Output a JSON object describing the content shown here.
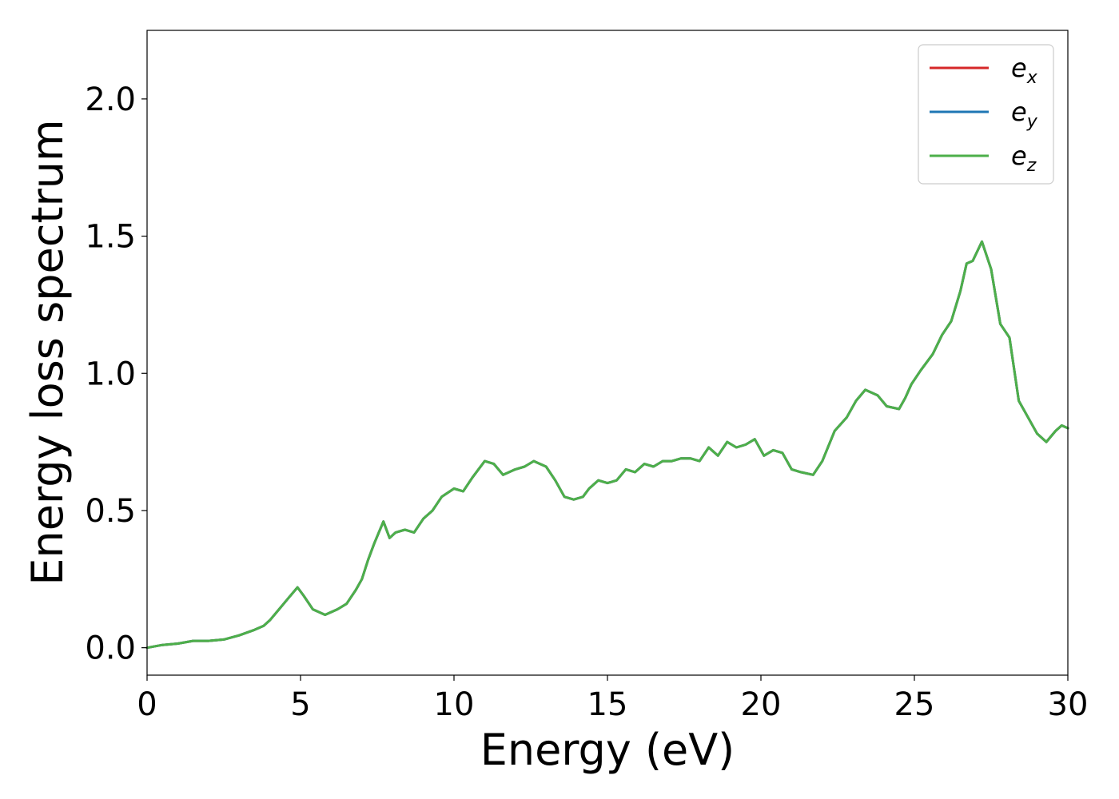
{
  "chart_data": {
    "type": "line",
    "title": "",
    "xlabel": "Energy (eV)",
    "ylabel": "Energy loss spectrum",
    "xlim": [
      0,
      30
    ],
    "ylim": [
      -0.1,
      2.25
    ],
    "xticks": [
      0,
      5,
      10,
      15,
      20,
      25,
      30
    ],
    "yticks": [
      0.0,
      0.5,
      1.0,
      1.5,
      2.0
    ],
    "xtick_labels": [
      "0",
      "5",
      "10",
      "15",
      "20",
      "25",
      "30"
    ],
    "ytick_labels": [
      "0.0",
      "0.5",
      "1.0",
      "1.5",
      "2.0"
    ],
    "grid": false,
    "legend_position": "top-right",
    "legend": [
      {
        "base": "e",
        "sub": "x",
        "color": "#d62728"
      },
      {
        "base": "e",
        "sub": "y",
        "color": "#1f77b4"
      },
      {
        "base": "e",
        "sub": "z",
        "color": "#4daf4a"
      }
    ],
    "x": [
      0.0,
      0.5,
      1.0,
      1.5,
      2.0,
      2.5,
      3.0,
      3.5,
      3.8,
      4.0,
      4.3,
      4.6,
      4.9,
      5.1,
      5.4,
      5.8,
      6.2,
      6.5,
      6.8,
      7.0,
      7.2,
      7.4,
      7.7,
      7.9,
      8.1,
      8.4,
      8.7,
      9.0,
      9.3,
      9.6,
      10.0,
      10.3,
      10.6,
      11.0,
      11.3,
      11.6,
      12.0,
      12.3,
      12.6,
      13.0,
      13.3,
      13.6,
      13.9,
      14.2,
      14.4,
      14.7,
      15.0,
      15.3,
      15.6,
      15.9,
      16.2,
      16.5,
      16.8,
      17.1,
      17.4,
      17.7,
      18.0,
      18.3,
      18.6,
      18.9,
      19.2,
      19.5,
      19.8,
      20.1,
      20.4,
      20.7,
      21.0,
      21.3,
      21.7,
      22.0,
      22.4,
      22.8,
      23.1,
      23.4,
      23.8,
      24.1,
      24.5,
      24.7,
      24.9,
      25.2,
      25.6,
      25.9,
      26.2,
      26.5,
      26.7,
      26.9,
      27.2,
      27.5,
      27.8,
      28.1,
      28.4,
      28.7,
      29.0,
      29.3,
      29.6,
      29.8,
      30.0
    ],
    "series": [
      {
        "name": "e_x",
        "values": [
          0.0,
          0.01,
          0.015,
          0.025,
          0.025,
          0.03,
          0.045,
          0.065,
          0.08,
          0.1,
          0.14,
          0.18,
          0.22,
          0.19,
          0.14,
          0.12,
          0.14,
          0.16,
          0.21,
          0.25,
          0.32,
          0.38,
          0.46,
          0.4,
          0.42,
          0.43,
          0.42,
          0.47,
          0.5,
          0.55,
          0.58,
          0.57,
          0.62,
          0.68,
          0.67,
          0.63,
          0.65,
          0.66,
          0.68,
          0.66,
          0.61,
          0.55,
          0.54,
          0.55,
          0.58,
          0.61,
          0.6,
          0.61,
          0.65,
          0.64,
          0.67,
          0.66,
          0.68,
          0.68,
          0.69,
          0.69,
          0.68,
          0.73,
          0.7,
          0.75,
          0.73,
          0.74,
          0.76,
          0.7,
          0.72,
          0.71,
          0.65,
          0.64,
          0.63,
          0.68,
          0.79,
          0.84,
          0.9,
          0.94,
          0.92,
          0.88,
          0.87,
          0.91,
          0.96,
          1.01,
          1.07,
          1.14,
          1.19,
          1.3,
          1.4,
          1.41,
          1.48,
          1.38,
          1.18,
          1.13,
          0.9,
          0.84,
          0.78,
          0.75,
          0.79,
          0.81,
          0.8
        ]
      },
      {
        "name": "e_y",
        "values": [
          0.0,
          0.01,
          0.015,
          0.025,
          0.025,
          0.03,
          0.045,
          0.065,
          0.08,
          0.1,
          0.14,
          0.18,
          0.22,
          0.19,
          0.14,
          0.12,
          0.14,
          0.16,
          0.21,
          0.25,
          0.32,
          0.38,
          0.46,
          0.4,
          0.42,
          0.43,
          0.42,
          0.47,
          0.5,
          0.55,
          0.58,
          0.57,
          0.62,
          0.68,
          0.67,
          0.63,
          0.65,
          0.66,
          0.68,
          0.66,
          0.61,
          0.55,
          0.54,
          0.55,
          0.58,
          0.61,
          0.6,
          0.61,
          0.65,
          0.64,
          0.67,
          0.66,
          0.68,
          0.68,
          0.69,
          0.69,
          0.68,
          0.73,
          0.7,
          0.75,
          0.73,
          0.74,
          0.76,
          0.7,
          0.72,
          0.71,
          0.65,
          0.64,
          0.63,
          0.68,
          0.79,
          0.84,
          0.9,
          0.94,
          0.92,
          0.88,
          0.87,
          0.91,
          0.96,
          1.01,
          1.07,
          1.14,
          1.19,
          1.3,
          1.4,
          1.41,
          1.48,
          1.38,
          1.18,
          1.13,
          0.9,
          0.84,
          0.78,
          0.75,
          0.79,
          0.81,
          0.8
        ]
      },
      {
        "name": "e_z",
        "values": [
          0.0,
          0.01,
          0.015,
          0.025,
          0.025,
          0.03,
          0.045,
          0.065,
          0.08,
          0.1,
          0.14,
          0.18,
          0.22,
          0.19,
          0.14,
          0.12,
          0.14,
          0.16,
          0.21,
          0.25,
          0.32,
          0.38,
          0.46,
          0.4,
          0.42,
          0.43,
          0.42,
          0.47,
          0.5,
          0.55,
          0.58,
          0.57,
          0.62,
          0.68,
          0.67,
          0.63,
          0.65,
          0.66,
          0.68,
          0.66,
          0.61,
          0.55,
          0.54,
          0.55,
          0.58,
          0.61,
          0.6,
          0.61,
          0.65,
          0.64,
          0.67,
          0.66,
          0.68,
          0.68,
          0.69,
          0.69,
          0.68,
          0.73,
          0.7,
          0.75,
          0.73,
          0.74,
          0.76,
          0.7,
          0.72,
          0.71,
          0.65,
          0.64,
          0.63,
          0.68,
          0.79,
          0.84,
          0.9,
          0.94,
          0.92,
          0.88,
          0.87,
          0.91,
          0.96,
          1.01,
          1.07,
          1.14,
          1.19,
          1.3,
          1.4,
          1.41,
          1.48,
          1.38,
          1.18,
          1.13,
          0.9,
          0.84,
          0.78,
          0.75,
          0.79,
          0.81,
          0.8
        ]
      }
    ]
  }
}
